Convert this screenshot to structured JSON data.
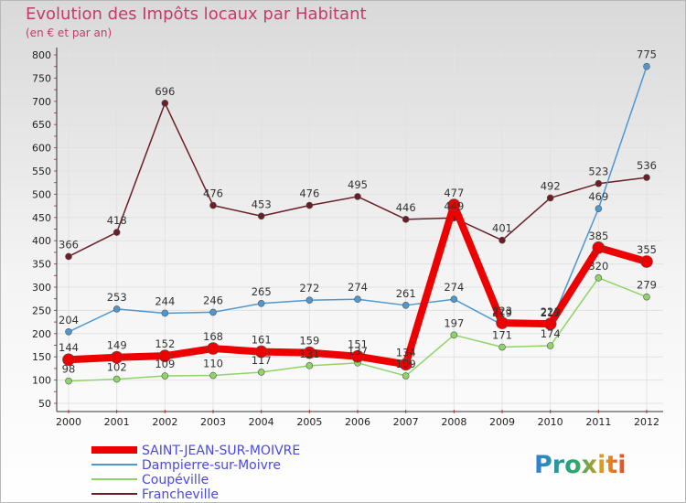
{
  "chart_data": {
    "type": "line",
    "title": "Evolution des Impôts locaux par Habitant",
    "subtitle": "(en € et par an)",
    "xlabel": "",
    "ylabel": "",
    "ylim": [
      50,
      800
    ],
    "yticks": [
      50,
      100,
      150,
      200,
      250,
      300,
      350,
      400,
      450,
      500,
      550,
      600,
      650,
      700,
      750,
      800
    ],
    "categories": [
      "2000",
      "2001",
      "2002",
      "2003",
      "2004",
      "2005",
      "2006",
      "2007",
      "2008",
      "2009",
      "2010",
      "2011",
      "2012"
    ],
    "series": [
      {
        "name": "Francheville",
        "color": "#6b1e28",
        "values": [
          366,
          418,
          696,
          476,
          453,
          476,
          495,
          446,
          449,
          401,
          492,
          523,
          536
        ]
      },
      {
        "name": "Dampierre-sur-Moivre",
        "color": "#4f97cf",
        "values": [
          204,
          253,
          244,
          246,
          265,
          272,
          274,
          261,
          274,
          219,
          219,
          469,
          775
        ]
      },
      {
        "name": "Coupéville",
        "color": "#8fd467",
        "values": [
          98,
          102,
          109,
          110,
          117,
          131,
          137,
          109,
          197,
          171,
          174,
          320,
          279
        ]
      },
      {
        "name": "SAINT-JEAN-SUR-MOIVRE",
        "color": "#ee0000",
        "values": [
          144,
          149,
          152,
          168,
          161,
          159,
          151,
          134,
          477,
          223,
          221,
          385,
          355
        ]
      }
    ],
    "legend": [
      "SAINT-JEAN-SUR-MOIVRE",
      "Dampierre-sur-Moivre",
      "Coupéville",
      "Francheville"
    ],
    "legend_position": "bottom-left"
  },
  "logo": {
    "text": "Proxiti"
  }
}
